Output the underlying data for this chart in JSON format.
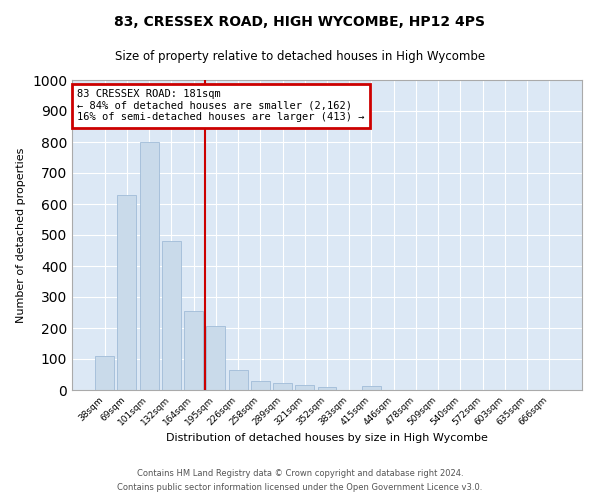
{
  "title1": "83, CRESSEX ROAD, HIGH WYCOMBE, HP12 4PS",
  "title2": "Size of property relative to detached houses in High Wycombe",
  "xlabel": "Distribution of detached houses by size in High Wycombe",
  "ylabel": "Number of detached properties",
  "footer1": "Contains HM Land Registry data © Crown copyright and database right 2024.",
  "footer2": "Contains public sector information licensed under the Open Government Licence v3.0.",
  "categories": [
    "38sqm",
    "69sqm",
    "101sqm",
    "132sqm",
    "164sqm",
    "195sqm",
    "226sqm",
    "258sqm",
    "289sqm",
    "321sqm",
    "352sqm",
    "383sqm",
    "415sqm",
    "446sqm",
    "478sqm",
    "509sqm",
    "540sqm",
    "572sqm",
    "603sqm",
    "635sqm",
    "666sqm"
  ],
  "values": [
    110,
    630,
    800,
    480,
    255,
    205,
    63,
    30,
    22,
    15,
    10,
    0,
    12,
    0,
    0,
    0,
    0,
    0,
    0,
    0,
    0
  ],
  "bar_color": "#c9daea",
  "bar_edge_color": "#a0bcd8",
  "vline_x": 4.5,
  "vline_color": "#cc0000",
  "annotation_title": "83 CRESSEX ROAD: 181sqm",
  "annotation_line1": "← 84% of detached houses are smaller (2,162)",
  "annotation_line2": "16% of semi-detached houses are larger (413) →",
  "annotation_box_color": "#cc0000",
  "ylim": [
    0,
    1000
  ],
  "yticks": [
    0,
    100,
    200,
    300,
    400,
    500,
    600,
    700,
    800,
    900,
    1000
  ],
  "fig_bg_color": "#ffffff",
  "plot_bg_color": "#dce8f5",
  "grid_color": "#ffffff"
}
